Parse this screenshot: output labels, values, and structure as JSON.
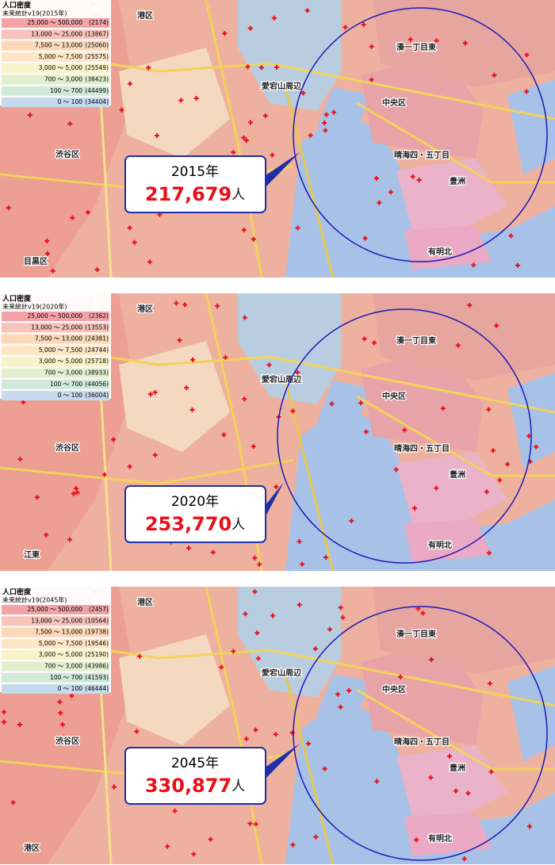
{
  "panels": [
    {
      "legend": {
        "title": "人口密度",
        "subtitle": "未来統計v19(2015年)",
        "rows": [
          {
            "range": "25,000 〜 500,000",
            "count": "(2174)"
          },
          {
            "range": "13,000 〜 25,000",
            "count": "(13867)"
          },
          {
            "range": "7,500 〜 13,000",
            "count": "(25060)"
          },
          {
            "range": "5,000 〜 7,500",
            "count": "(25575)"
          },
          {
            "range": "3,000 〜 5,000",
            "count": "(25549)"
          },
          {
            "range": "700 〜 3,000",
            "count": "(38423)"
          },
          {
            "range": "100 〜 700",
            "count": "(44499)"
          },
          {
            "range": "0 〜 100",
            "count": "(34404)"
          }
        ]
      },
      "callout": {
        "year": "2015年",
        "population": "217,679",
        "unit": "人"
      },
      "map_labels": [
        "港区",
        "愛宕山周辺",
        "中央区",
        "晴海四・五丁目",
        "豊洲",
        "有明北",
        "湊一丁目東",
        "渋谷区",
        "目黒区"
      ]
    },
    {
      "legend": {
        "title": "人口密度",
        "subtitle": "未来統計v19(2020年)",
        "rows": [
          {
            "range": "25,000 〜 500,000",
            "count": "(2362)"
          },
          {
            "range": "13,000 〜 25,000",
            "count": "(13553)"
          },
          {
            "range": "7,500 〜 13,000",
            "count": "(24381)"
          },
          {
            "range": "5,000 〜 7,500",
            "count": "(24744)"
          },
          {
            "range": "3,000 〜 5,000",
            "count": "(25718)"
          },
          {
            "range": "700 〜 3,000",
            "count": "(38933)"
          },
          {
            "range": "100 〜 700",
            "count": "(44056)"
          },
          {
            "range": "0 〜 100",
            "count": "(36004)"
          }
        ]
      },
      "callout": {
        "year": "2020年",
        "population": "253,770",
        "unit": "人"
      },
      "map_labels": [
        "港区",
        "愛宕山周辺",
        "中央区",
        "晴海四・五丁目",
        "豊洲",
        "有明北",
        "湊一丁目東",
        "渋谷区",
        "江東"
      ]
    },
    {
      "legend": {
        "title": "人口密度",
        "subtitle": "未来統計v19(2045年)",
        "rows": [
          {
            "range": "25,000 〜 500,000",
            "count": "(2457)"
          },
          {
            "range": "13,000 〜 25,000",
            "count": "(10564)"
          },
          {
            "range": "7,500 〜 13,000",
            "count": "(19738)"
          },
          {
            "range": "5,000 〜 7,500",
            "count": "(19546)"
          },
          {
            "range": "3,000 〜 5,000",
            "count": "(25190)"
          },
          {
            "range": "700 〜 3,000",
            "count": "(43986)"
          },
          {
            "range": "100 〜 700",
            "count": "(41593)"
          },
          {
            "range": "0 〜 100",
            "count": "(46444)"
          }
        ]
      },
      "callout": {
        "year": "2045年",
        "population": "330,877",
        "unit": "人"
      },
      "map_labels": [
        "港区",
        "愛宕山周辺",
        "中央区",
        "晴海四・五丁目",
        "豊洲",
        "有明北",
        "湊一丁目東",
        "渋谷区",
        "港区"
      ]
    }
  ]
}
